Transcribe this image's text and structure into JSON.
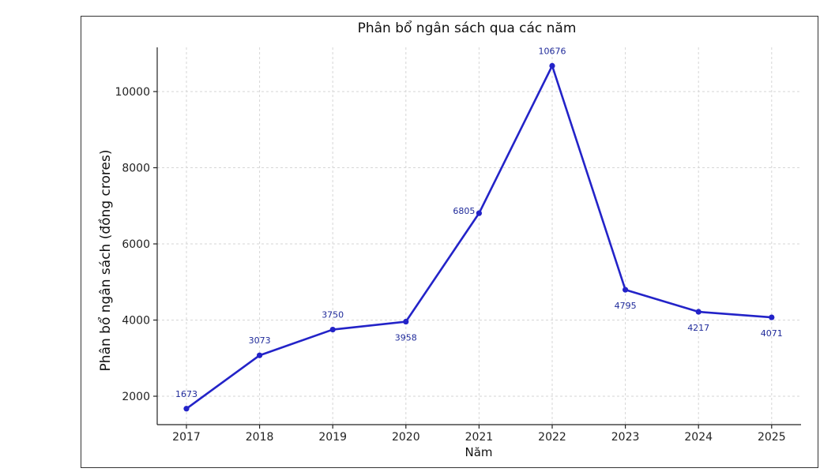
{
  "chart_data": {
    "type": "line",
    "title": "Phân bổ ngân sách qua các năm",
    "xlabel": "Năm",
    "ylabel": "Phân bổ ngân sách (đồng crores)",
    "categories": [
      "2017",
      "2018",
      "2019",
      "2020",
      "2021",
      "2022",
      "2023",
      "2024",
      "2025"
    ],
    "series": [
      {
        "values": [
          1673,
          3073,
          3750,
          3958,
          6805,
          10676,
          4795,
          4217,
          4071
        ]
      }
    ],
    "data_labels": [
      "1673",
      "3073",
      "3750",
      "3958",
      "6805",
      "10676",
      "4795",
      "4217",
      "4071"
    ],
    "label_positions": [
      "above",
      "above",
      "above",
      "below",
      "left",
      "above",
      "below",
      "below",
      "below"
    ],
    "yticks": [
      2000,
      4000,
      6000,
      8000,
      10000
    ],
    "ylim": [
      1200,
      11100
    ],
    "grid": true,
    "line_color": "#2323c8"
  }
}
